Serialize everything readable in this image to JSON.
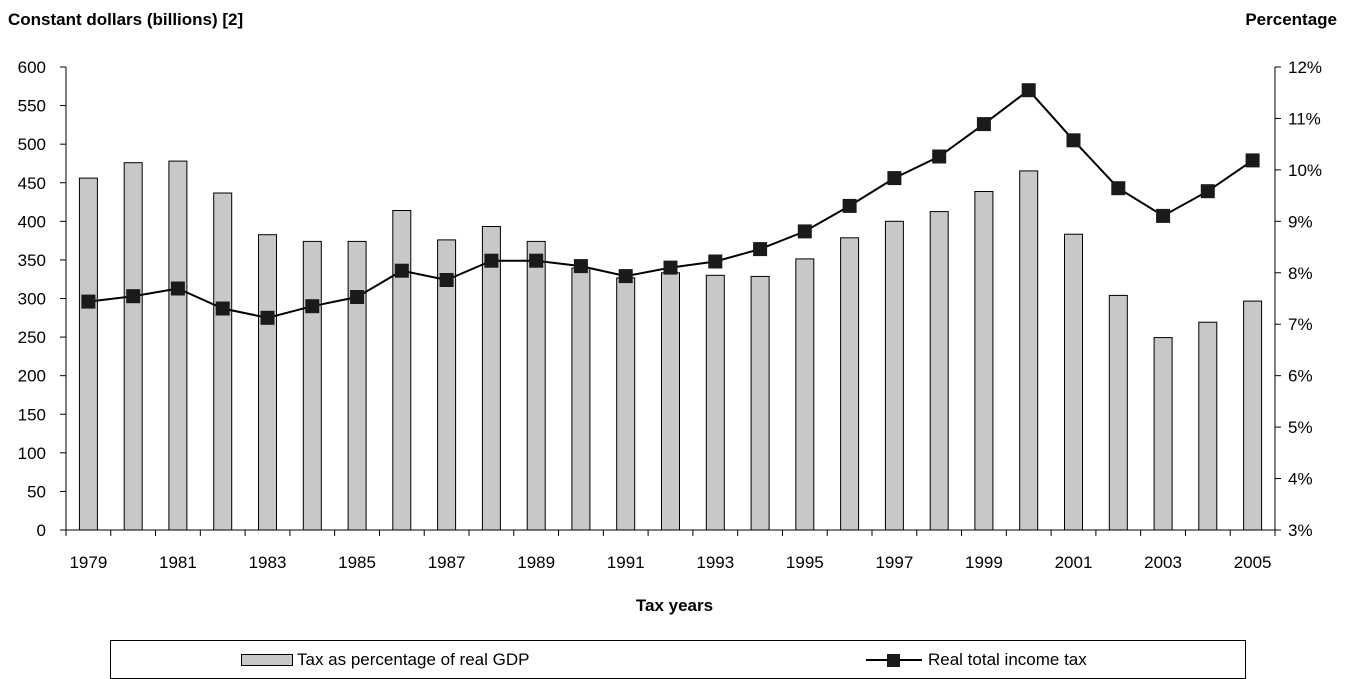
{
  "chart_data": {
    "type": "bar+line",
    "x": [
      "1979",
      "1980",
      "1981",
      "1982",
      "1983",
      "1984",
      "1985",
      "1986",
      "1987",
      "1988",
      "1989",
      "1990",
      "1991",
      "1992",
      "1993",
      "1994",
      "1995",
      "1996",
      "1997",
      "1998",
      "1999",
      "2000",
      "2001",
      "2002",
      "2003",
      "2004",
      "2005"
    ],
    "x_tick_labels": [
      "1979",
      "1981",
      "1983",
      "1985",
      "1987",
      "1989",
      "1991",
      "1993",
      "1995",
      "1997",
      "1999",
      "2001",
      "2003",
      "2005"
    ],
    "xlabel": "Tax years",
    "ylabel_left": "Constant dollars (billions) [2]",
    "ylabel_right": "Percentage",
    "ylim_left": [
      0,
      600
    ],
    "ylim_right": [
      3,
      12
    ],
    "y_ticks_left": [
      "0",
      "50",
      "100",
      "150",
      "200",
      "250",
      "300",
      "350",
      "400",
      "450",
      "500",
      "550",
      "600"
    ],
    "y_ticks_right": [
      "3%",
      "4%",
      "5%",
      "6%",
      "7%",
      "8%",
      "9%",
      "10%",
      "11%",
      "12%"
    ],
    "series": [
      {
        "name": "Tax as percentage of real GDP",
        "type": "bar",
        "axis": "right",
        "color": "#c8c8c8",
        "values": [
          9.84,
          10.14,
          10.17,
          9.55,
          8.74,
          8.61,
          8.61,
          9.21,
          8.64,
          8.9,
          8.61,
          8.09,
          7.9,
          8.0,
          7.95,
          7.93,
          8.27,
          8.68,
          9.0,
          9.19,
          9.58,
          9.98,
          8.75,
          7.56,
          6.74,
          7.04,
          7.45
        ]
      },
      {
        "name": "Real total income tax",
        "type": "line",
        "axis": "left",
        "color": "#000000",
        "values": [
          296,
          303,
          313,
          287,
          275,
          290,
          302,
          336,
          324,
          349,
          349,
          342,
          329,
          340,
          348,
          364,
          387,
          420,
          456,
          484,
          526,
          570,
          505,
          443,
          407,
          439,
          479
        ]
      }
    ],
    "grid": false,
    "legend_position": "bottom"
  }
}
